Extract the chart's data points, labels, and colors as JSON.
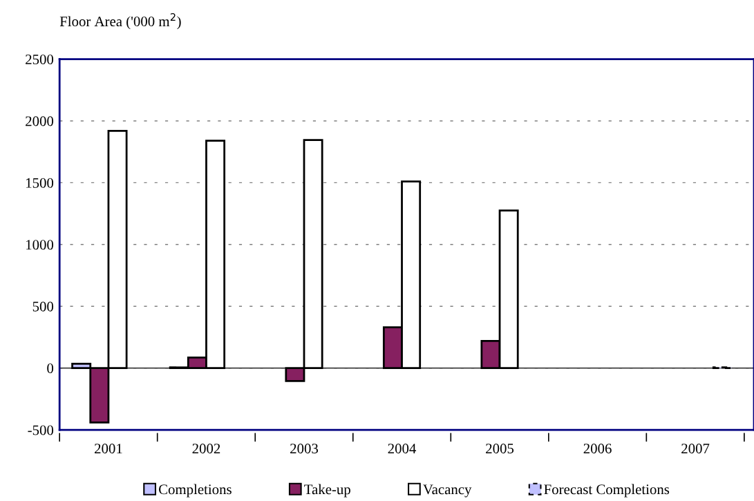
{
  "chart_data": {
    "type": "bar",
    "ylabel": "Floor Area ('000 m$^{2}$)",
    "categories": [
      "2001",
      "2002",
      "2003",
      "2004",
      "2005",
      "2006",
      "2007"
    ],
    "series": [
      {
        "name": "Completions",
        "color": "#c0c0ff",
        "values": [
          35,
          5,
          null,
          null,
          null,
          null,
          null
        ]
      },
      {
        "name": "Take-up",
        "color": "#862060",
        "values": [
          -440,
          85,
          -105,
          330,
          220,
          null,
          null
        ]
      },
      {
        "name": "Vacancy",
        "color": "#ffffff",
        "values": [
          1920,
          1840,
          1845,
          1510,
          1275,
          null,
          null
        ]
      },
      {
        "name": "Forecast Completions",
        "color": "#c0c0ff",
        "line_style": "dashed",
        "values": [
          null,
          null,
          null,
          null,
          null,
          null,
          5
        ]
      }
    ],
    "ylim": [
      -500,
      2500
    ],
    "yticks": [
      -500,
      0,
      500,
      1000,
      1500,
      2000,
      2500
    ],
    "grid": "y",
    "legend": "bottom"
  }
}
